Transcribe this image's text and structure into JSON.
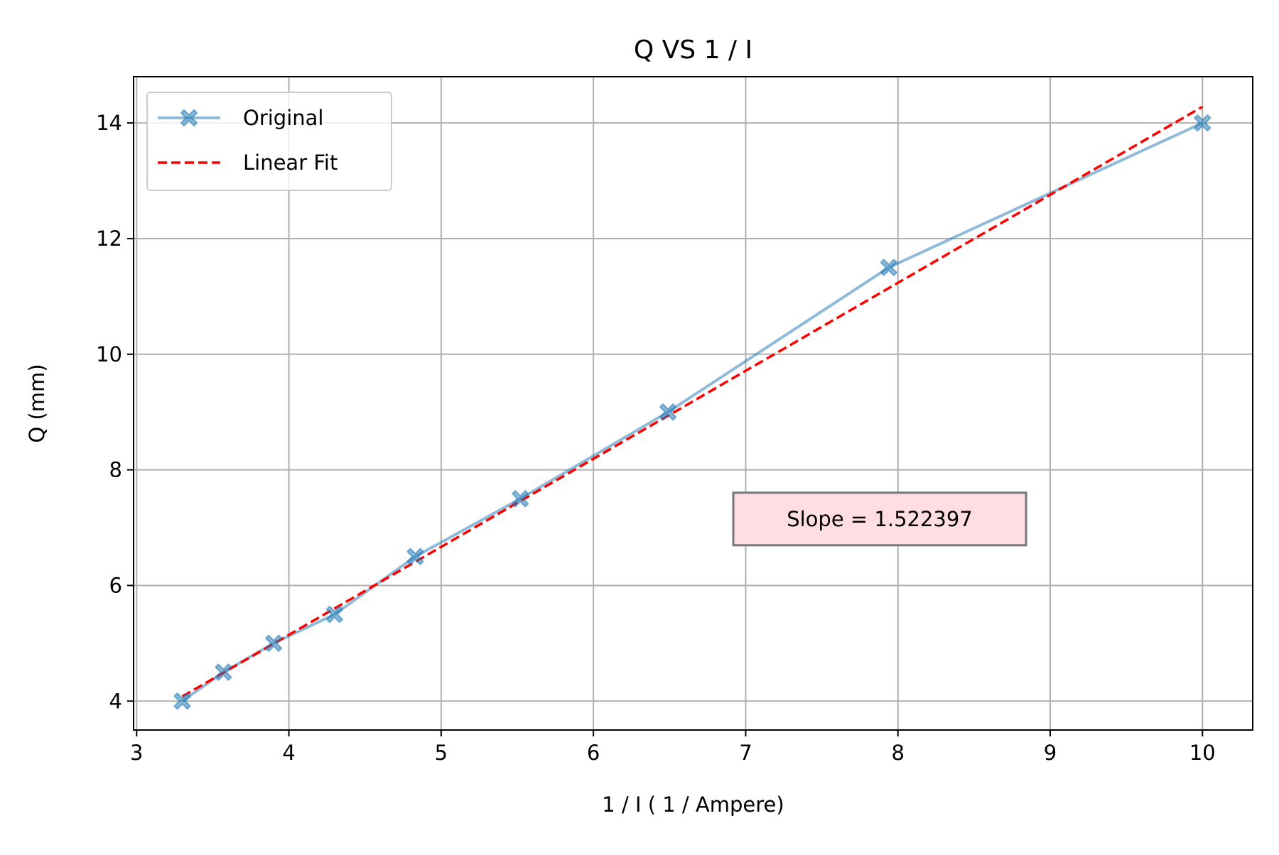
{
  "chart_data": {
    "type": "line",
    "title": "Q VS 1 / I",
    "xlabel": "1 / I ( 1 / Ampere)",
    "ylabel": "Q (mm)",
    "xlim": [
      2.98,
      10.33
    ],
    "ylim": [
      3.5,
      14.8
    ],
    "xticks": [
      3,
      4,
      5,
      6,
      7,
      8,
      9,
      10
    ],
    "yticks": [
      4,
      6,
      8,
      10,
      12,
      14
    ],
    "grid": true,
    "legend_position": "top-left",
    "series": [
      {
        "name": "Original",
        "color": "#7fb0d5",
        "marker": "X",
        "style": "solid",
        "points": [
          {
            "x": 3.3,
            "y": 4.0
          },
          {
            "x": 3.57,
            "y": 4.5
          },
          {
            "x": 3.9,
            "y": 5.0
          },
          {
            "x": 4.3,
            "y": 5.5
          },
          {
            "x": 4.83,
            "y": 6.5
          },
          {
            "x": 5.52,
            "y": 7.5
          },
          {
            "x": 6.49,
            "y": 9.0
          },
          {
            "x": 7.94,
            "y": 11.5
          },
          {
            "x": 10.0,
            "y": 14.0
          }
        ]
      },
      {
        "name": "Linear Fit",
        "color": "#ff0000",
        "style": "dashed",
        "points": [
          {
            "x": 3.3,
            "y": 4.08
          },
          {
            "x": 10.0,
            "y": 14.28
          }
        ]
      }
    ],
    "annotation": {
      "text": "Slope = 1.522397",
      "x": 7.88,
      "y": 7.15,
      "background": "#ffdde2",
      "border": "#777777"
    }
  }
}
